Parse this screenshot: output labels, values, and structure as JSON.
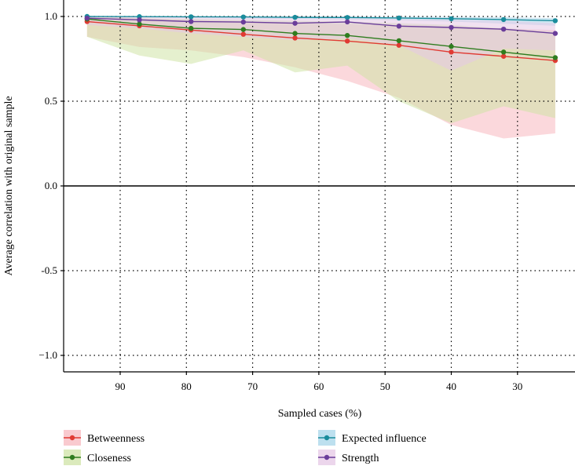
{
  "chart_data": {
    "type": "line",
    "title": "",
    "xlabel": "Sampled cases (%)",
    "ylabel": "Average correlation with original sample",
    "xlim": [
      96,
      24
    ],
    "ylim": [
      -1.1,
      1.1
    ],
    "x_ticks": [
      90,
      80,
      70,
      60,
      50,
      40,
      30
    ],
    "x_tick_labels": [
      "90",
      "80",
      "70",
      "60",
      "50",
      "40",
      "30"
    ],
    "y_ticks": [
      1.0,
      0.5,
      0.0,
      -0.5,
      -1.0
    ],
    "y_tick_labels": [
      "1.0",
      "0.5",
      "0.0",
      "-0.5",
      "−1.0"
    ],
    "grid": true,
    "legend_position": "bottom",
    "x": [
      95,
      87.1,
      79.3,
      71.4,
      63.6,
      55.7,
      47.9,
      40.0,
      32.1,
      24.3
    ],
    "series": [
      {
        "name": "Betweenness",
        "color": "#e03a33",
        "fill": "#f7b8bf",
        "values": [
          0.97,
          0.945,
          0.92,
          0.895,
          0.873,
          0.855,
          0.83,
          0.79,
          0.765,
          0.74
        ],
        "lower": [
          0.88,
          0.82,
          0.8,
          0.76,
          0.7,
          0.62,
          0.52,
          0.36,
          0.28,
          0.31
        ],
        "upper": [
          1.0,
          0.99,
          0.98,
          0.97,
          0.96,
          0.955,
          0.95,
          0.94,
          0.93,
          0.92
        ]
      },
      {
        "name": "Closeness",
        "color": "#2f7d1f",
        "fill": "#cfe3a5",
        "values": [
          0.985,
          0.955,
          0.93,
          0.923,
          0.9,
          0.888,
          0.857,
          0.823,
          0.79,
          0.757
        ],
        "lower": [
          0.88,
          0.77,
          0.72,
          0.8,
          0.67,
          0.71,
          0.5,
          0.37,
          0.47,
          0.4
        ],
        "upper": [
          1.0,
          0.99,
          0.985,
          0.98,
          0.975,
          0.97,
          0.96,
          0.95,
          0.93,
          0.91
        ]
      },
      {
        "name": "Expected influence",
        "color": "#1a8c9c",
        "fill": "#a7d6ea",
        "values": [
          1.0,
          0.999,
          0.998,
          0.997,
          0.995,
          0.994,
          0.991,
          0.987,
          0.982,
          0.975
        ],
        "lower": [
          0.995,
          0.993,
          0.991,
          0.989,
          0.986,
          0.983,
          0.978,
          0.97,
          0.958,
          0.945
        ],
        "upper": [
          1.0,
          1.0,
          1.0,
          1.0,
          1.0,
          1.0,
          0.999,
          0.998,
          0.996,
          0.99
        ]
      },
      {
        "name": "Strength",
        "color": "#6a3d9a",
        "fill": "#e6c8e6",
        "values": [
          0.99,
          0.98,
          0.97,
          0.967,
          0.96,
          0.968,
          0.943,
          0.935,
          0.925,
          0.9
        ],
        "lower": [
          0.95,
          0.93,
          0.9,
          0.88,
          0.86,
          0.87,
          0.83,
          0.68,
          0.81,
          0.8
        ],
        "upper": [
          1.0,
          1.0,
          0.995,
          0.995,
          0.99,
          0.99,
          0.985,
          0.98,
          0.975,
          0.96
        ]
      }
    ]
  }
}
